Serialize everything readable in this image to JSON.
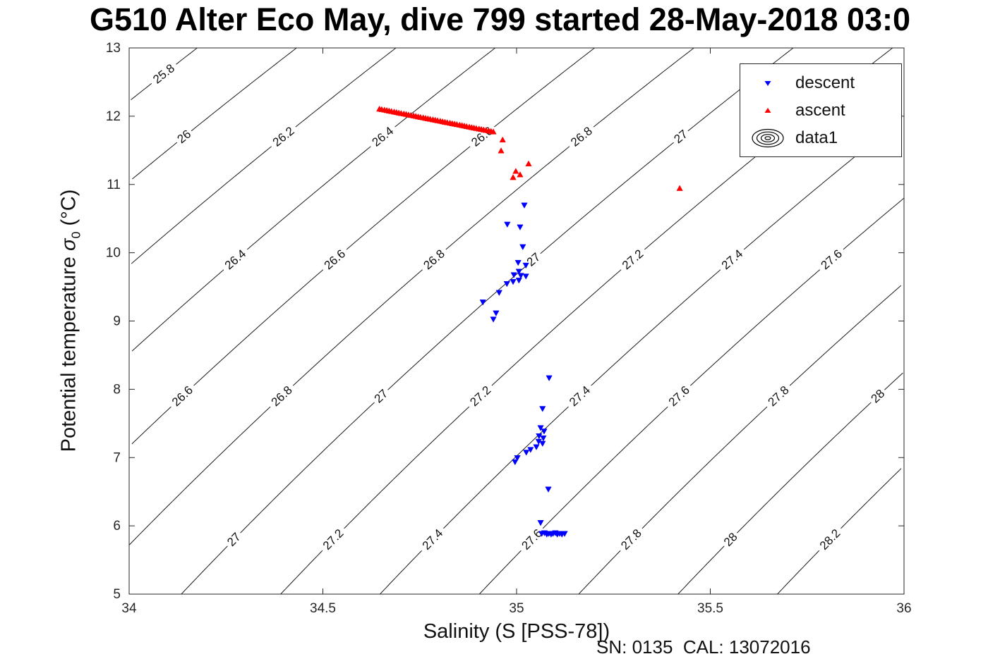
{
  "chart_data": {
    "type": "scatter",
    "title": "G510 Alter Eco May, dive 799 started 28-May-2018 03:0",
    "xlabel": "Salinity (S [PSS-78])",
    "ylabel": {
      "pre": "Potential temperature ",
      "symbol": "σ",
      "subscript": "0",
      "post": " (°C)"
    },
    "annotation": "SN: 0135  CAL: 13072016",
    "xlim": [
      34,
      36
    ],
    "ylim": [
      5,
      13
    ],
    "x_ticks": [
      34,
      34.5,
      35,
      35.5,
      36
    ],
    "y_ticks": [
      5,
      6,
      7,
      8,
      9,
      10,
      11,
      12,
      13
    ],
    "grid": false,
    "colors": {
      "descent": "#0000ff",
      "ascent": "#ff0000",
      "contour": "#1a1a1a",
      "axis": "#262626"
    },
    "legend": {
      "position": "top-right",
      "entries": [
        {
          "label": "descent",
          "marker": "triangle-down",
          "color": "#0000ff"
        },
        {
          "label": "ascent",
          "marker": "triangle-up",
          "color": "#ff0000"
        },
        {
          "label": "data1",
          "marker": "contour-rings",
          "color": "#000000"
        }
      ]
    },
    "contours": {
      "levels": [
        25.8,
        26,
        26.2,
        26.4,
        26.6,
        26.8,
        27,
        27.2,
        27.4,
        27.6,
        27.8,
        28,
        28.2
      ],
      "label_t_bands": [
        5.8,
        7.9,
        9.9,
        11.7
      ],
      "description": "sigma-0 isopycnals (kg/m^3)"
    },
    "series": [
      {
        "name": "descent",
        "marker": "triangle-down",
        "color": "#0000ff",
        "points": [
          [
            35.02,
            10.7
          ],
          [
            34.976,
            10.42
          ],
          [
            35.009,
            10.38
          ],
          [
            35.016,
            10.09
          ],
          [
            35.004,
            9.86
          ],
          [
            35.024,
            9.82
          ],
          [
            35.006,
            9.73
          ],
          [
            34.993,
            9.68
          ],
          [
            35.011,
            9.67
          ],
          [
            35.024,
            9.66
          ],
          [
            35.006,
            9.6
          ],
          [
            34.991,
            9.58
          ],
          [
            34.975,
            9.55
          ],
          [
            34.955,
            9.42
          ],
          [
            34.913,
            9.28
          ],
          [
            34.947,
            9.12
          ],
          [
            34.94,
            9.03
          ],
          [
            35.084,
            8.17
          ],
          [
            35.067,
            7.72
          ],
          [
            35.062,
            7.44
          ],
          [
            35.071,
            7.39
          ],
          [
            35.058,
            7.32
          ],
          [
            35.069,
            7.29
          ],
          [
            35.057,
            7.24
          ],
          [
            35.067,
            7.21
          ],
          [
            35.051,
            7.16
          ],
          [
            35.036,
            7.12
          ],
          [
            35.025,
            7.08
          ],
          [
            35.002,
            7.0
          ],
          [
            34.996,
            6.94
          ],
          [
            35.082,
            6.54
          ],
          [
            35.062,
            6.05
          ],
          [
            35.065,
            5.89
          ],
          [
            35.072,
            5.9
          ],
          [
            35.078,
            5.88
          ],
          [
            35.083,
            5.89
          ],
          [
            35.089,
            5.88
          ],
          [
            35.094,
            5.89
          ],
          [
            35.1,
            5.9
          ],
          [
            35.105,
            5.88
          ],
          [
            35.111,
            5.89
          ],
          [
            35.117,
            5.88
          ],
          [
            35.124,
            5.89
          ]
        ]
      },
      {
        "name": "ascent",
        "marker": "triangle-up",
        "color": "#ff0000",
        "points": [
          [
            34.646,
            12.102
          ],
          [
            34.652,
            12.095
          ],
          [
            34.659,
            12.088
          ],
          [
            34.665,
            12.081
          ],
          [
            34.671,
            12.074
          ],
          [
            34.677,
            12.067
          ],
          [
            34.684,
            12.059
          ],
          [
            34.69,
            12.052
          ],
          [
            34.696,
            12.045
          ],
          [
            34.702,
            12.038
          ],
          [
            34.709,
            12.031
          ],
          [
            34.715,
            12.024
          ],
          [
            34.721,
            12.017
          ],
          [
            34.727,
            12.01
          ],
          [
            34.734,
            12.003
          ],
          [
            34.74,
            11.996
          ],
          [
            34.746,
            11.988
          ],
          [
            34.752,
            11.981
          ],
          [
            34.759,
            11.974
          ],
          [
            34.765,
            11.967
          ],
          [
            34.771,
            11.96
          ],
          [
            34.777,
            11.953
          ],
          [
            34.784,
            11.946
          ],
          [
            34.79,
            11.939
          ],
          [
            34.796,
            11.932
          ],
          [
            34.803,
            11.925
          ],
          [
            34.809,
            11.917
          ],
          [
            34.815,
            11.91
          ],
          [
            34.821,
            11.903
          ],
          [
            34.828,
            11.896
          ],
          [
            34.834,
            11.889
          ],
          [
            34.84,
            11.882
          ],
          [
            34.846,
            11.875
          ],
          [
            34.853,
            11.868
          ],
          [
            34.859,
            11.861
          ],
          [
            34.865,
            11.854
          ],
          [
            34.871,
            11.846
          ],
          [
            34.878,
            11.839
          ],
          [
            34.884,
            11.832
          ],
          [
            34.89,
            11.825
          ],
          [
            34.896,
            11.818
          ],
          [
            34.903,
            11.811
          ],
          [
            34.909,
            11.804
          ],
          [
            34.915,
            11.797
          ],
          [
            34.921,
            11.79
          ],
          [
            34.928,
            11.783
          ],
          [
            34.934,
            11.776
          ],
          [
            34.94,
            11.768
          ],
          [
            34.964,
            11.65
          ],
          [
            34.96,
            11.49
          ],
          [
            34.998,
            11.19
          ],
          [
            34.991,
            11.1
          ],
          [
            35.009,
            11.14
          ],
          [
            35.031,
            11.3
          ],
          [
            35.421,
            10.94
          ]
        ]
      }
    ]
  }
}
